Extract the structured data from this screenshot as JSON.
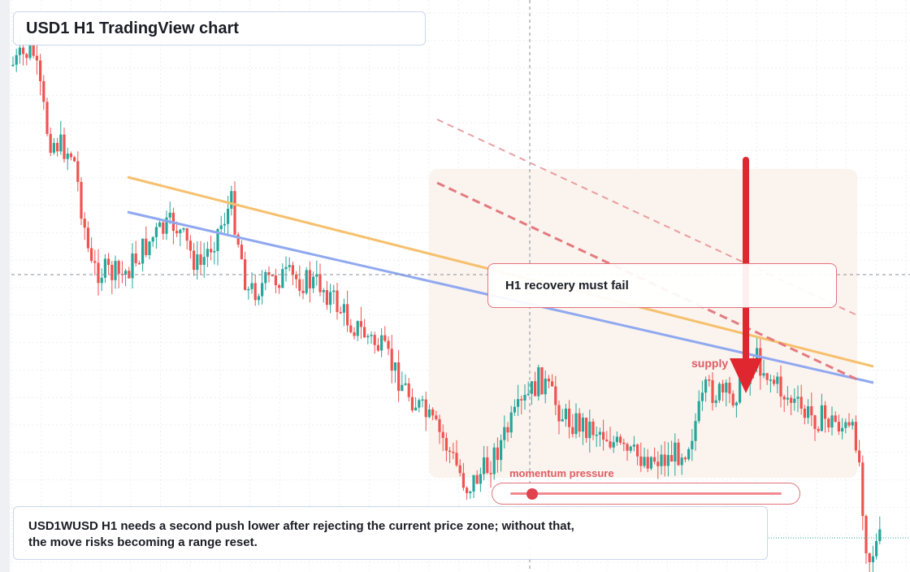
{
  "title": "USD1 H1 TradingView chart",
  "callout": {
    "text": "H1 recovery must fail"
  },
  "supply_label": "supply",
  "momentum": {
    "label": "momentum pressure",
    "level": 0.06
  },
  "note": {
    "line1": "USD1WUSD H1 needs a second push lower after rejecting the current price zone; without that,",
    "line2": "the move risks becoming a range reset."
  },
  "colors": {
    "bull": "#26a69a",
    "bear": "#ef5350",
    "resistance_orange": "#f6c06d",
    "resistance_blue": "#8fa8f0",
    "channel_dashed": "#e37a7f",
    "arrow": "#e0262f",
    "zone": "#fbf3ee"
  },
  "icons": {
    "arrow": "arrow-down-icon"
  }
}
